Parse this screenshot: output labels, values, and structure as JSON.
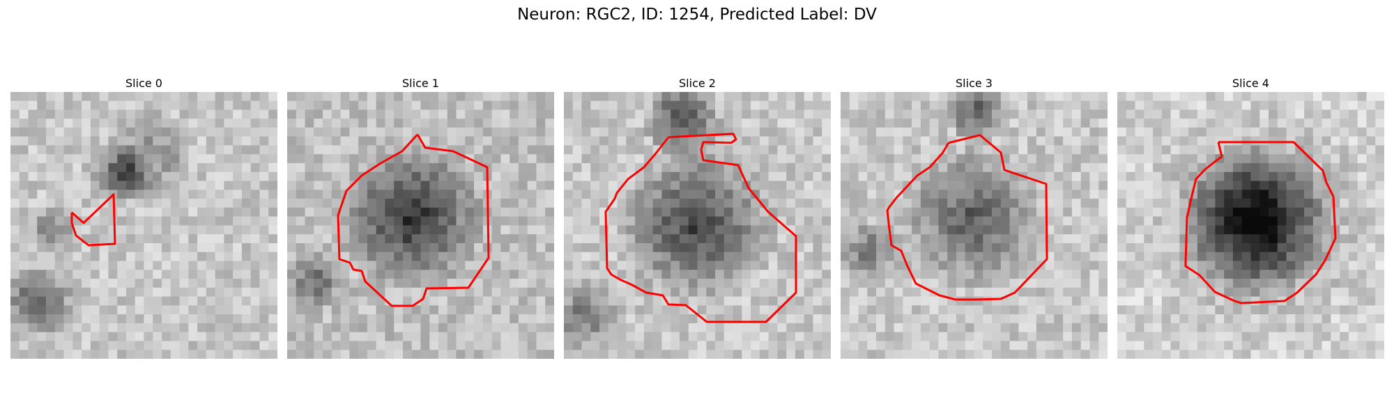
{
  "figure": {
    "title": "Neuron: RGC2, ID: 1254, Predicted Label: DV",
    "contour_color": "#ff0000",
    "colormap": "gray"
  },
  "panels": [
    {
      "title": "Slice 0"
    },
    {
      "title": "Slice 1"
    },
    {
      "title": "Slice 2"
    },
    {
      "title": "Slice 3"
    },
    {
      "title": "Slice 4"
    }
  ]
}
